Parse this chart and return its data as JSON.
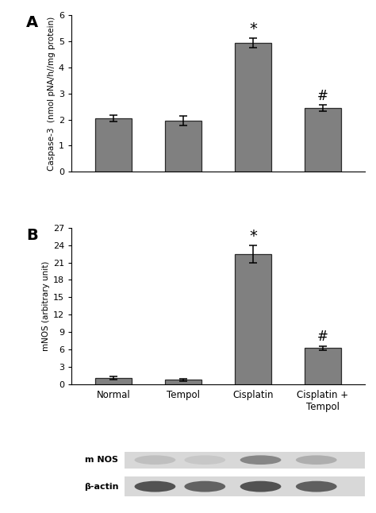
{
  "categories": [
    "Normal",
    "Tempol",
    "Cisplatin",
    "Cisplatin +\nTempol"
  ],
  "caspase_values": [
    2.05,
    1.95,
    4.95,
    2.45
  ],
  "caspase_errors": [
    0.12,
    0.18,
    0.18,
    0.12
  ],
  "mnos_values": [
    1.0,
    0.7,
    22.5,
    6.2
  ],
  "mnos_errors": [
    0.25,
    0.15,
    1.5,
    0.4
  ],
  "bar_color": "#808080",
  "bar_edgecolor": "#2a2a2a",
  "caspase_ylabel": "Caspase-3  (nmol pNA/h//mg protein)",
  "mnos_ylabel": "mNOS (arbitrary unit)",
  "caspase_ylim": [
    0,
    6
  ],
  "caspase_yticks": [
    0,
    1,
    2,
    3,
    4,
    5,
    6
  ],
  "mnos_ylim": [
    0,
    27
  ],
  "mnos_yticks": [
    0,
    3,
    6,
    9,
    12,
    15,
    18,
    21,
    24,
    27
  ],
  "panel_a_label": "A",
  "panel_b_label": "B",
  "star_indices": [
    2
  ],
  "hash_indices": [
    3
  ],
  "mnos_band_label": "m NOS",
  "actin_band_label": "β-actin",
  "figure_bg": "#ffffff",
  "mnos_band_alphas": [
    0.18,
    0.12,
    0.6,
    0.3
  ],
  "actin_band_alphas": [
    0.8,
    0.7,
    0.8,
    0.72
  ]
}
